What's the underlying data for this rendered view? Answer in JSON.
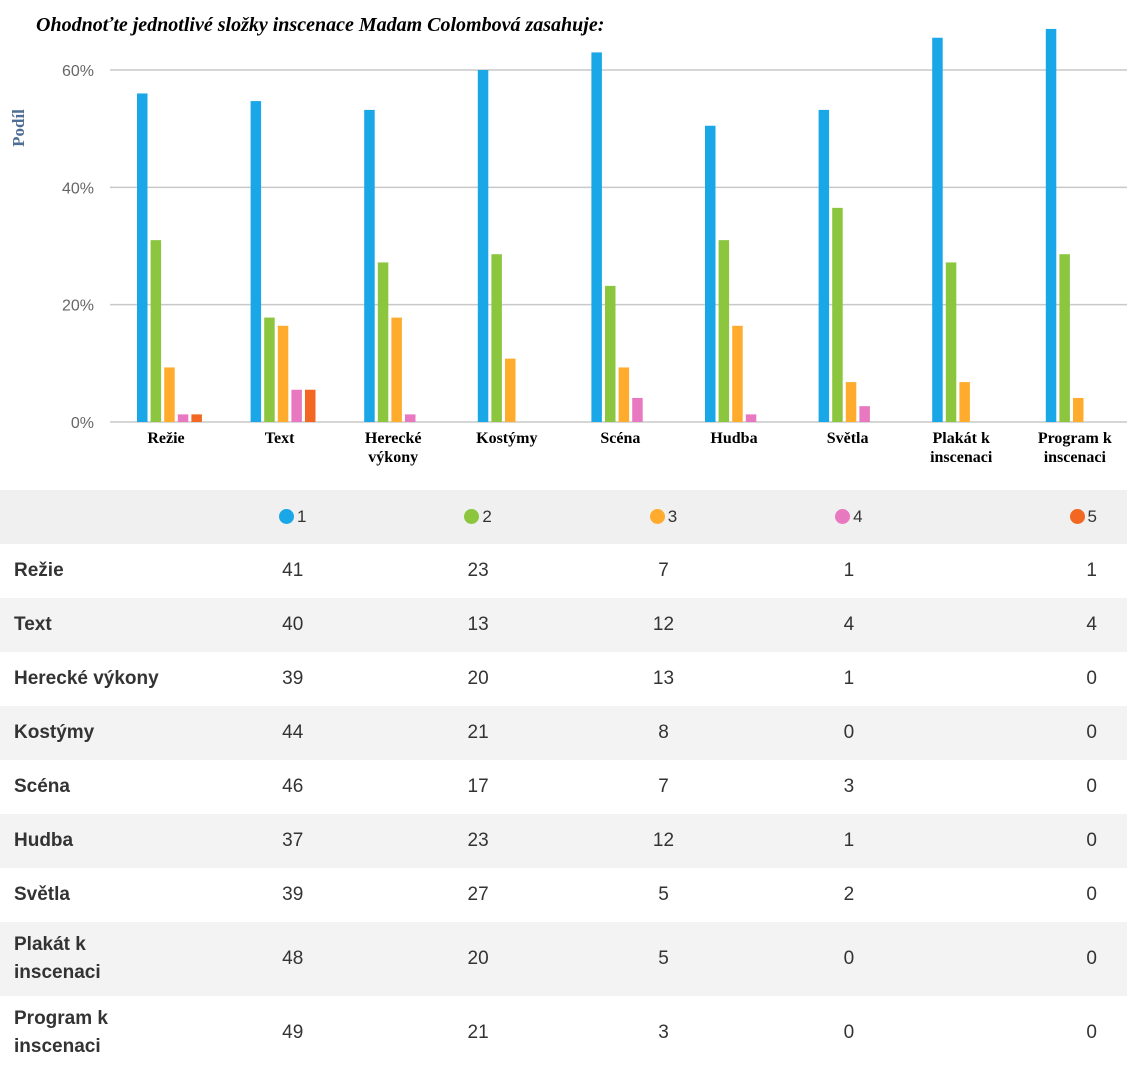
{
  "chart_data": {
    "type": "bar",
    "title": "Ohodnoťte jednotlivé složky inscenace Madam Colombová zasahuje:",
    "ylabel": "Podíl",
    "xlabel": "",
    "ylim": [
      0,
      0.6
    ],
    "yticks": [
      "0%",
      "20%",
      "40%",
      "60%"
    ],
    "grid": true,
    "categories": [
      "Režie",
      "Text",
      "Herecké výkony",
      "Kostýmy",
      "Scéna",
      "Hudba",
      "Světla",
      "Plakát k inscenaci",
      "Program k inscenaci"
    ],
    "series": [
      {
        "name": "1",
        "color": "#1aa7e8",
        "values": [
          0.56,
          0.547,
          0.532,
          0.6,
          0.63,
          0.505,
          0.532,
          0.655,
          0.67
        ]
      },
      {
        "name": "2",
        "color": "#8cc63f",
        "values": [
          0.31,
          0.178,
          0.272,
          0.286,
          0.232,
          0.31,
          0.365,
          0.272,
          0.286
        ]
      },
      {
        "name": "3",
        "color": "#ffab2e",
        "values": [
          0.093,
          0.164,
          0.178,
          0.108,
          0.093,
          0.164,
          0.068,
          0.068,
          0.041
        ]
      },
      {
        "name": "4",
        "color": "#e879c1",
        "values": [
          0.013,
          0.055,
          0.013,
          0,
          0.041,
          0.013,
          0.027,
          0,
          0
        ]
      },
      {
        "name": "5",
        "color": "#f26722",
        "values": [
          0.013,
          0.055,
          0,
          0,
          0,
          0,
          0,
          0,
          0
        ]
      }
    ]
  },
  "chart_labels": {
    "xticks": [
      [
        "Režie"
      ],
      [
        "Text"
      ],
      [
        "Herecké",
        "výkony"
      ],
      [
        "Kostýmy"
      ],
      [
        "Scéna"
      ],
      [
        "Hudba"
      ],
      [
        "Světla"
      ],
      [
        "Plakát k",
        "inscenaci"
      ],
      [
        "Program k",
        "inscenaci"
      ]
    ]
  },
  "table": {
    "columns": [
      "1",
      "2",
      "3",
      "4",
      "5"
    ],
    "rows": [
      {
        "label": "Režie",
        "values": [
          "41",
          "23",
          "7",
          "1",
          "1"
        ]
      },
      {
        "label": "Text",
        "values": [
          "40",
          "13",
          "12",
          "4",
          "4"
        ]
      },
      {
        "label": "Herecké výkony",
        "values": [
          "39",
          "20",
          "13",
          "1",
          "0"
        ]
      },
      {
        "label": "Kostýmy",
        "values": [
          "44",
          "21",
          "8",
          "0",
          "0"
        ]
      },
      {
        "label": "Scéna",
        "values": [
          "46",
          "17",
          "7",
          "3",
          "0"
        ]
      },
      {
        "label": "Hudba",
        "values": [
          "37",
          "23",
          "12",
          "1",
          "0"
        ]
      },
      {
        "label": "Světla",
        "values": [
          "39",
          "27",
          "5",
          "2",
          "0"
        ]
      },
      {
        "label": "Plakát k inscenaci",
        "values": [
          "48",
          "20",
          "5",
          "0",
          "0"
        ]
      },
      {
        "label": "Program k inscenaci",
        "values": [
          "49",
          "21",
          "3",
          "0",
          "0"
        ]
      }
    ]
  }
}
